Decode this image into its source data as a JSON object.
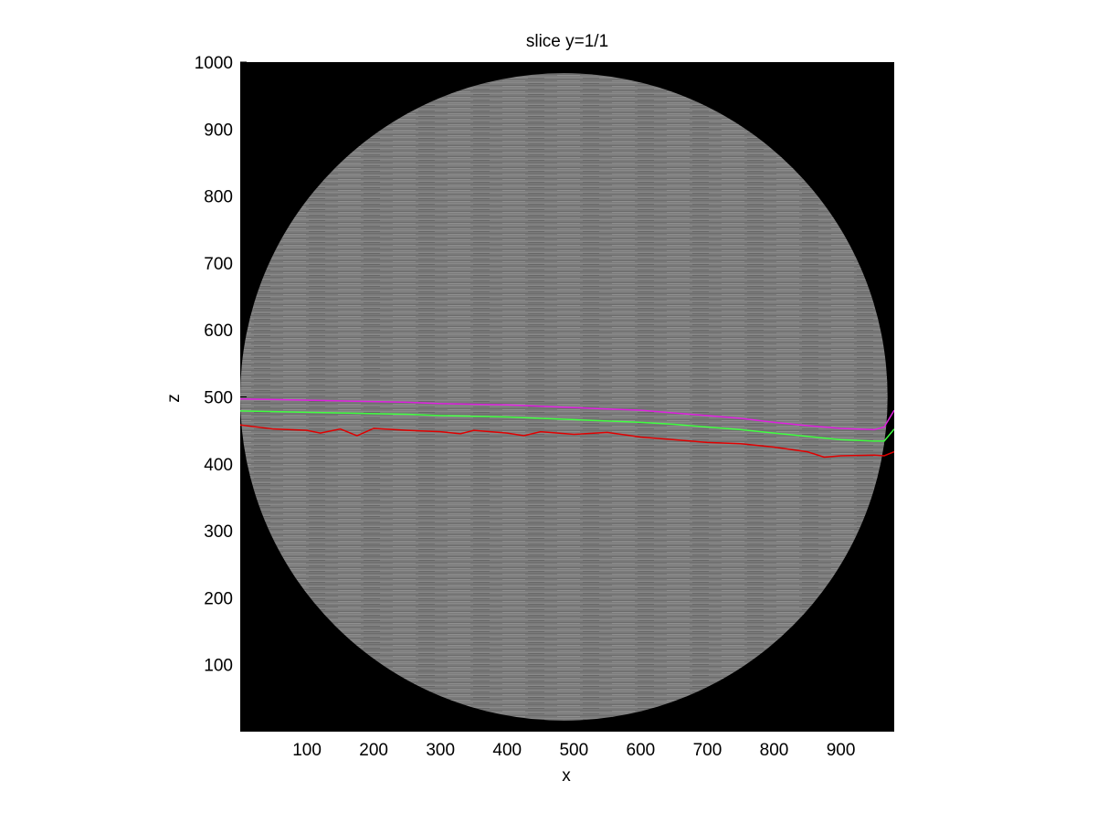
{
  "chart_data": {
    "type": "heatmap",
    "title": "slice y=1/1",
    "xlabel": "x",
    "ylabel": "z",
    "xlim": [
      0,
      980
    ],
    "ylim": [
      0,
      1000
    ],
    "x_ticks": [
      100,
      200,
      300,
      400,
      500,
      600,
      700,
      800,
      900
    ],
    "y_ticks": [
      100,
      200,
      300,
      400,
      500,
      600,
      700,
      800,
      900,
      1000
    ],
    "image": {
      "background_color": "#000000",
      "disc_color": "#7a7a7a",
      "disc_center": [
        485,
        500
      ],
      "disc_radius": 485
    },
    "series": [
      {
        "color": "#e020e0",
        "x": [
          0,
          50,
          100,
          150,
          200,
          250,
          300,
          350,
          400,
          450,
          500,
          550,
          600,
          650,
          700,
          750,
          800,
          850,
          900,
          950,
          965,
          980
        ],
        "y": [
          497,
          496,
          495,
          494,
          493,
          492,
          490,
          489,
          488,
          486,
          484,
          482,
          480,
          476,
          472,
          468,
          462,
          457,
          453,
          451,
          455,
          480
        ]
      },
      {
        "color": "#40ff40",
        "x": [
          0,
          50,
          100,
          150,
          200,
          250,
          300,
          350,
          400,
          450,
          500,
          550,
          600,
          650,
          700,
          750,
          800,
          850,
          900,
          950,
          965,
          980
        ],
        "y": [
          479,
          478,
          477,
          476,
          475,
          474,
          472,
          471,
          470,
          468,
          466,
          464,
          462,
          459,
          455,
          451,
          446,
          441,
          436,
          434,
          434,
          452
        ]
      },
      {
        "color": "#e00000",
        "x": [
          0,
          50,
          100,
          120,
          150,
          175,
          200,
          250,
          300,
          330,
          350,
          400,
          425,
          450,
          500,
          550,
          600,
          650,
          700,
          750,
          800,
          850,
          875,
          900,
          950,
          965,
          980
        ],
        "y": [
          458,
          452,
          450,
          446,
          452,
          442,
          453,
          450,
          448,
          445,
          450,
          446,
          442,
          448,
          444,
          447,
          440,
          436,
          432,
          430,
          425,
          418,
          410,
          412,
          413,
          412,
          418
        ]
      }
    ]
  }
}
